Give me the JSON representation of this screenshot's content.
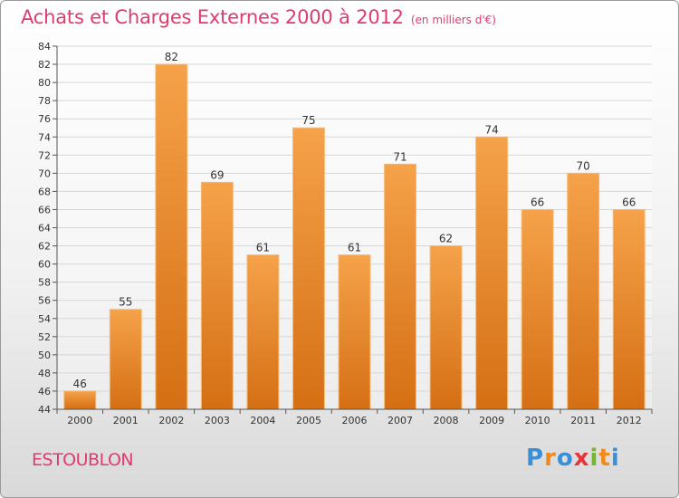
{
  "title": "Achats et Charges Externes 2000 à 2012",
  "subtitle": "(en milliers d'€)",
  "commune": "ESTOUBLON",
  "logo": {
    "letters": [
      "P",
      "r",
      "o",
      "x",
      "i",
      "t",
      "i"
    ],
    "colors": [
      "#3a8fd8",
      "#f08a1c",
      "#3a8fd8",
      "#e8333c",
      "#74b72e",
      "#f08a1c",
      "#3a8fd8"
    ]
  },
  "colors": {
    "bar_top": "#f5a24a",
    "bar_bottom": "#d56f14",
    "title": "#de3c6e"
  },
  "chart_data": {
    "type": "bar",
    "title": "Achats et Charges Externes 2000 à 2012",
    "subtitle": "(en milliers d'€)",
    "categories": [
      "2000",
      "2001",
      "2002",
      "2003",
      "2004",
      "2005",
      "2006",
      "2007",
      "2008",
      "2009",
      "2010",
      "2011",
      "2012"
    ],
    "values": [
      46,
      55,
      82,
      69,
      61,
      75,
      61,
      71,
      62,
      74,
      66,
      70,
      66
    ],
    "ylim": [
      44,
      84
    ],
    "yticks": [
      44,
      46,
      48,
      50,
      52,
      54,
      56,
      58,
      60,
      62,
      64,
      66,
      68,
      70,
      72,
      74,
      76,
      78,
      80,
      82,
      84
    ],
    "xlabel": "",
    "ylabel": "",
    "grid": true
  }
}
